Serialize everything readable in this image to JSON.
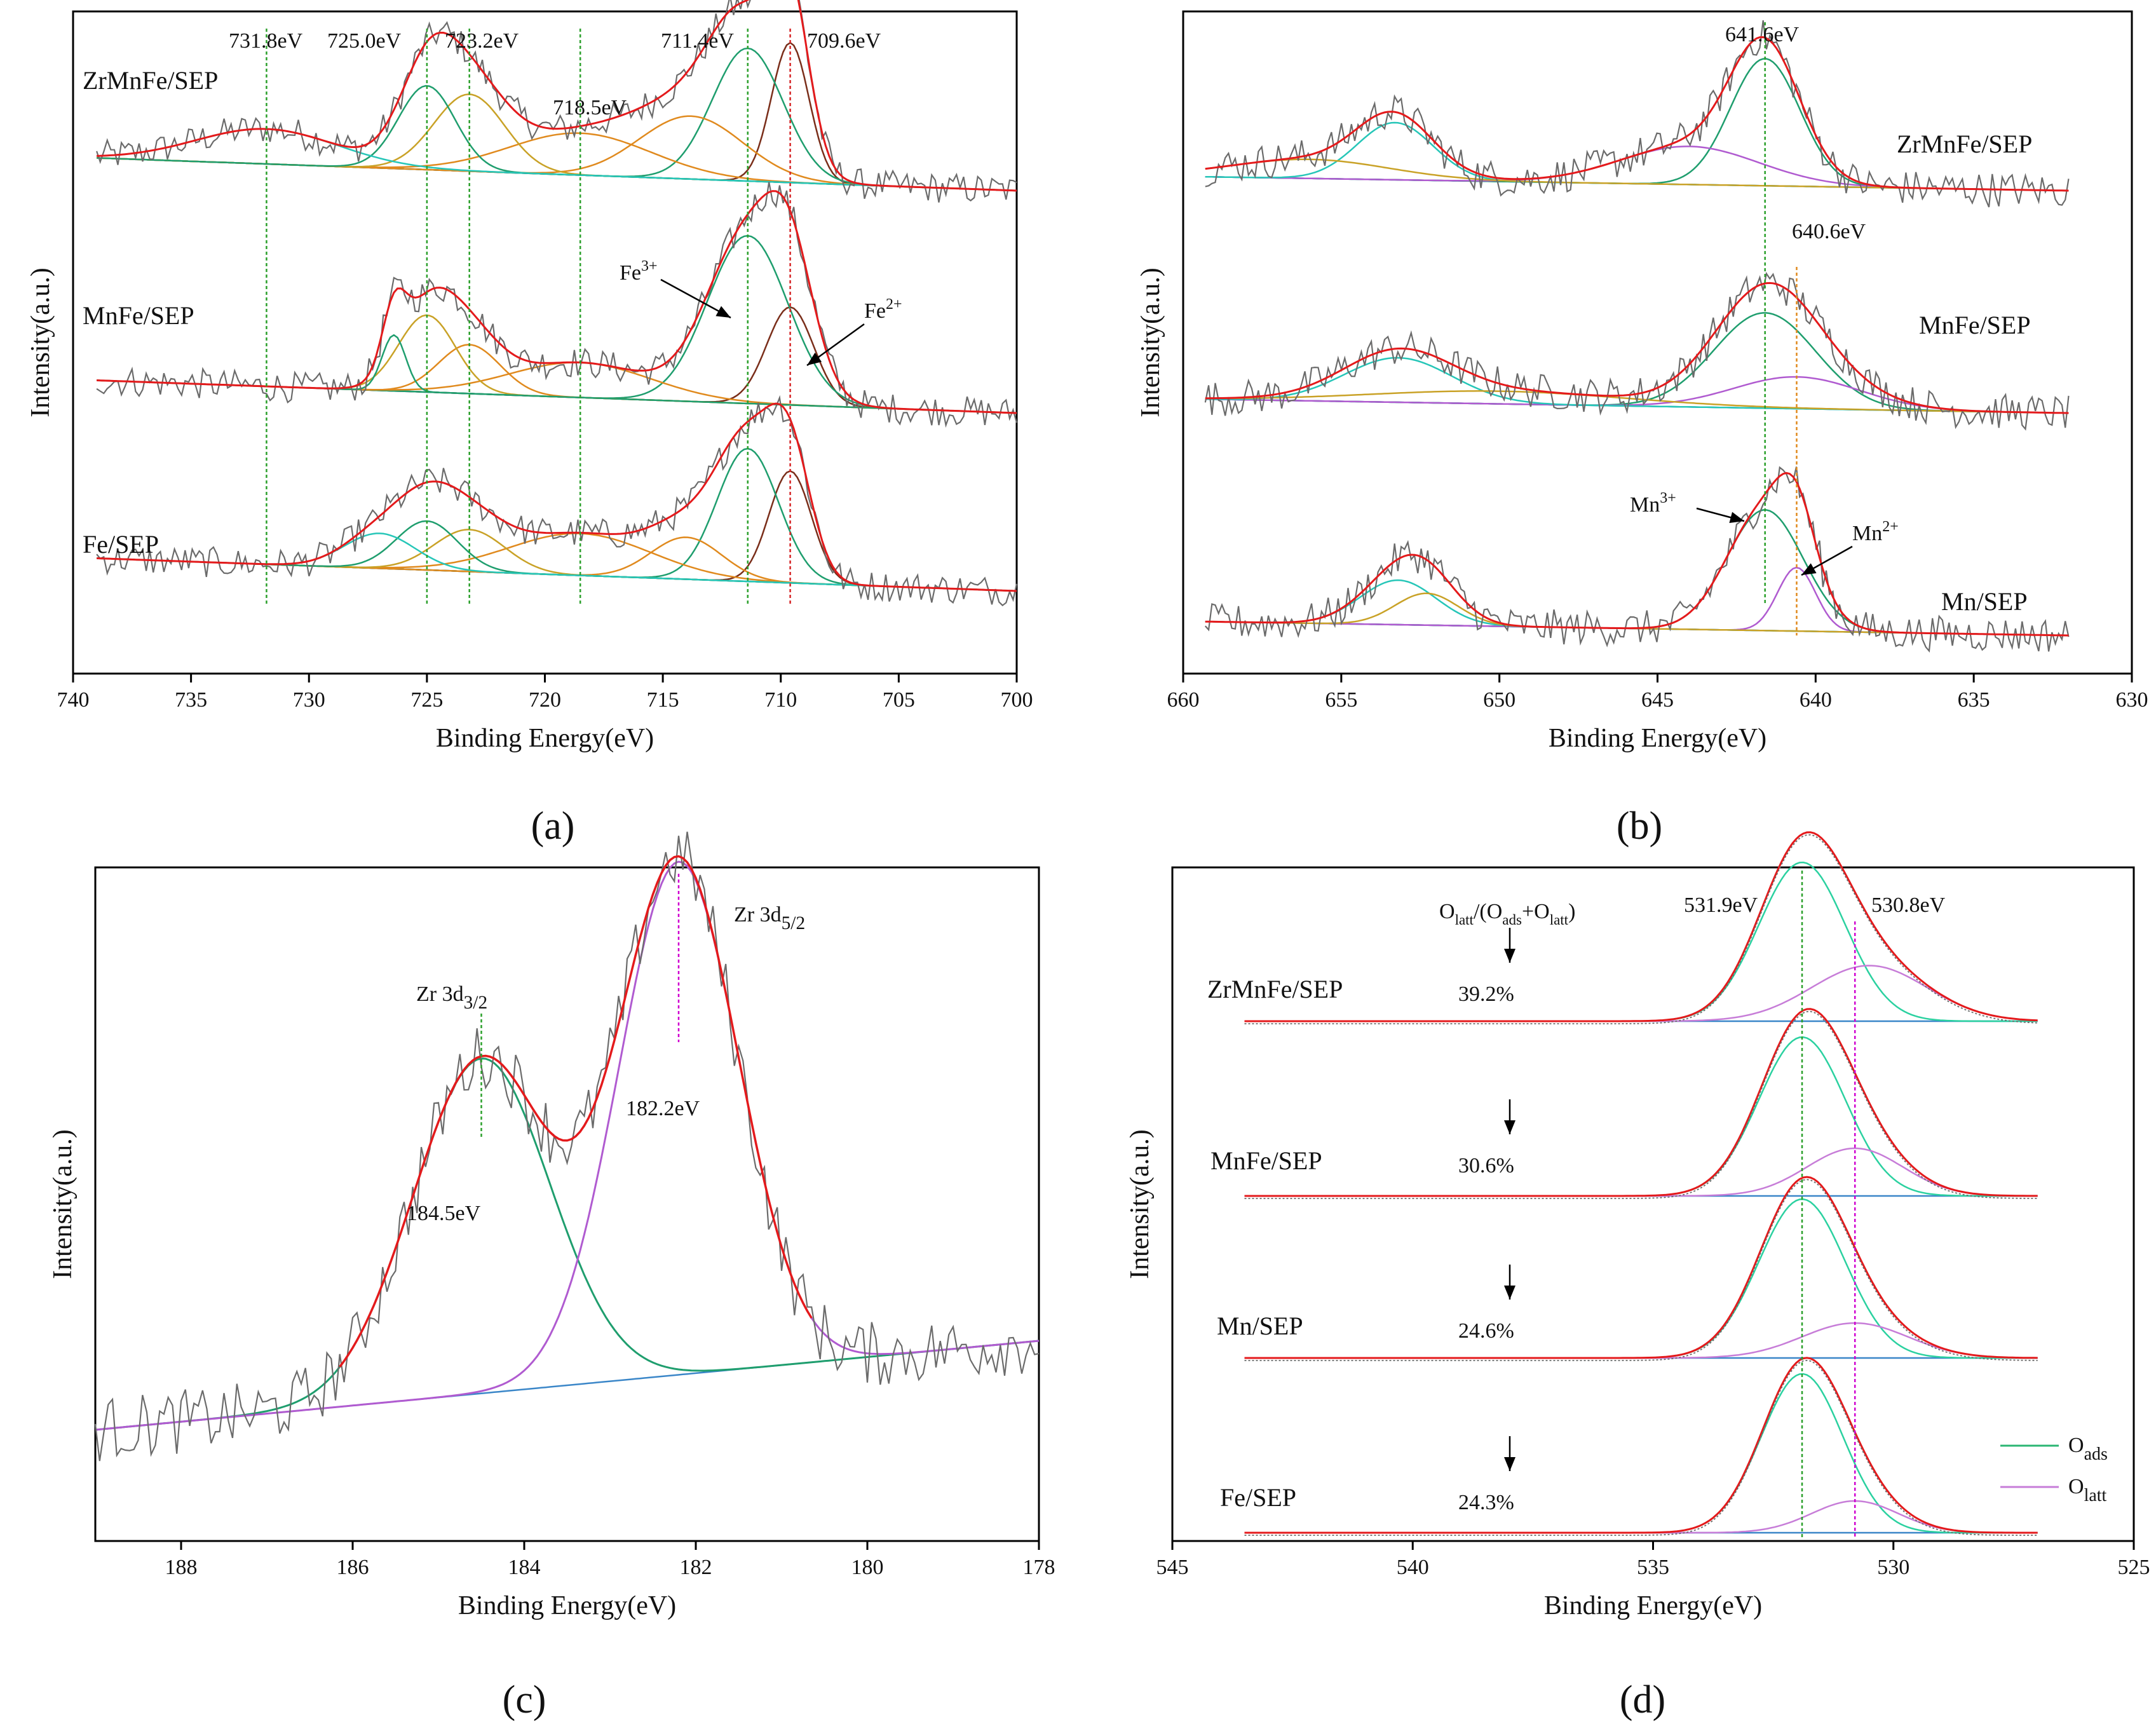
{
  "chart_data": [
    {
      "type": "line",
      "panel": "a",
      "xlabel": "Binding Energy(eV)",
      "ylabel": "Intensity(a.u.)",
      "xlim": [
        740,
        700
      ],
      "xticks": [
        740,
        735,
        730,
        725,
        720,
        715,
        710,
        705,
        700
      ],
      "peak_labels": [
        "731.8eV",
        "725.0eV",
        "723.2eV",
        "718.5eV",
        "711.4eV",
        "709.6eV"
      ],
      "reference_lines_eV": [
        731.8,
        725.0,
        723.2,
        718.5,
        711.4,
        709.6
      ],
      "annotations": [
        {
          "base": "Fe",
          "sup": "3+",
          "points_to_eV": 711.4
        },
        {
          "base": "Fe",
          "sup": "2+",
          "points_to_eV": 709.6
        }
      ],
      "samples": [
        {
          "name": "ZrMnFe/SEP",
          "components": [
            {
              "center": 709.6,
              "amp": 1.0,
              "width": 0.8
            },
            {
              "center": 711.4,
              "amp": 0.95,
              "width": 1.5
            },
            {
              "center": 713.8,
              "amp": 0.45,
              "width": 2.2
            },
            {
              "center": 718.5,
              "amp": 0.3,
              "width": 3.0
            },
            {
              "center": 723.2,
              "amp": 0.55,
              "width": 1.5
            },
            {
              "center": 725.0,
              "amp": 0.6,
              "width": 1.2
            },
            {
              "center": 731.8,
              "amp": 0.25,
              "width": 3.0
            }
          ]
        },
        {
          "name": "MnFe/SEP",
          "components": [
            {
              "center": 709.6,
              "amp": 0.7,
              "width": 1.0
            },
            {
              "center": 711.4,
              "amp": 1.2,
              "width": 1.7
            },
            {
              "center": 718.5,
              "amp": 0.25,
              "width": 3.0
            },
            {
              "center": 723.2,
              "amp": 0.35,
              "width": 1.3
            },
            {
              "center": 725.0,
              "amp": 0.55,
              "width": 1.2
            },
            {
              "center": 726.4,
              "amp": 0.4,
              "width": 0.5
            }
          ]
        },
        {
          "name": "Fe/SEP",
          "components": [
            {
              "center": 709.6,
              "amp": 0.8,
              "width": 0.9
            },
            {
              "center": 711.4,
              "amp": 0.95,
              "width": 1.3
            },
            {
              "center": 714.0,
              "amp": 0.3,
              "width": 1.5
            },
            {
              "center": 718.5,
              "amp": 0.3,
              "width": 3.0
            },
            {
              "center": 723.2,
              "amp": 0.3,
              "width": 1.5
            },
            {
              "center": 725.0,
              "amp": 0.35,
              "width": 1.3
            },
            {
              "center": 727.0,
              "amp": 0.25,
              "width": 1.5
            }
          ]
        }
      ]
    },
    {
      "type": "line",
      "panel": "b",
      "xlabel": "Binding Energy(eV)",
      "ylabel": "Intensity(a.u.)",
      "xlim": [
        660,
        630
      ],
      "xticks": [
        660,
        655,
        650,
        645,
        640,
        635,
        630
      ],
      "peak_labels": [
        "641.6eV",
        "640.6eV"
      ],
      "reference_lines_eV": [
        641.6,
        640.6
      ],
      "annotations": [
        {
          "base": "Mn",
          "sup": "3+",
          "points_to_eV": 641.6
        },
        {
          "base": "Mn",
          "sup": "2+",
          "points_to_eV": 640.6
        }
      ],
      "samples": [
        {
          "name": "ZrMnFe/SEP",
          "components": [
            {
              "center": 641.6,
              "amp": 1.0,
              "width": 1.1
            },
            {
              "center": 644.0,
              "amp": 0.3,
              "width": 2.2
            },
            {
              "center": 653.3,
              "amp": 0.45,
              "width": 1.2
            },
            {
              "center": 656.0,
              "amp": 0.15,
              "width": 2.5
            }
          ]
        },
        {
          "name": "MnFe/SEP",
          "components": [
            {
              "center": 641.6,
              "amp": 0.75,
              "width": 1.6
            },
            {
              "center": 640.6,
              "amp": 0.25,
              "width": 2.0
            },
            {
              "center": 653.2,
              "amp": 0.35,
              "width": 1.7
            },
            {
              "center": 650.0,
              "amp": 0.1,
              "width": 4.0
            }
          ]
        },
        {
          "name": "Mn/SEP",
          "components": [
            {
              "center": 641.6,
              "amp": 0.95,
              "width": 1.2
            },
            {
              "center": 640.6,
              "amp": 0.5,
              "width": 0.6
            },
            {
              "center": 653.2,
              "amp": 0.35,
              "width": 1.2
            },
            {
              "center": 652.3,
              "amp": 0.25,
              "width": 1.0
            }
          ]
        }
      ]
    },
    {
      "type": "line",
      "panel": "c",
      "xlabel": "Binding Energy(eV)",
      "ylabel": "Intensity(a.u.)",
      "xlim": [
        189,
        178
      ],
      "xticks": [
        188,
        186,
        184,
        182,
        180,
        178
      ],
      "peak_labels": [
        "184.5eV",
        "182.2eV"
      ],
      "reference_lines_eV": [
        184.5,
        182.2
      ],
      "annotations": [
        {
          "base": "Zr 3d",
          "sub": "3/2",
          "points_to_eV": 184.5
        },
        {
          "base": "Zr 3d",
          "sub": "5/2",
          "points_to_eV": 182.2
        }
      ],
      "components": [
        {
          "center": 184.5,
          "amp": 0.62,
          "width": 0.8
        },
        {
          "center": 182.2,
          "amp": 0.95,
          "width": 0.7
        }
      ]
    },
    {
      "type": "line",
      "panel": "d",
      "xlabel": "Binding Energy(eV)",
      "ylabel": "Intensity(a.u.)",
      "xlim": [
        545,
        525
      ],
      "xticks": [
        545,
        540,
        535,
        530,
        525
      ],
      "peak_labels": [
        "531.9eV",
        "530.8eV"
      ],
      "reference_lines_eV": [
        531.9,
        530.8
      ],
      "ratio_header": {
        "prefix": "O",
        "sub1": "latt",
        "mid": "/(O",
        "sub2": "ads",
        "mid2": "+O",
        "sub3": "latt",
        "suffix": ")"
      },
      "legend": [
        {
          "base": "O",
          "sub": "ads",
          "color": "#2bb673"
        },
        {
          "base": "O",
          "sub": "latt",
          "color": "#c77dd8"
        }
      ],
      "samples": [
        {
          "name": "ZrMnFe/SEP",
          "ratio": "39.2%",
          "oads": {
            "center": 531.9,
            "amp": 1.0,
            "width": 0.9
          },
          "olatt": {
            "center": 530.5,
            "amp": 0.35,
            "width": 1.2
          }
        },
        {
          "name": "MnFe/SEP",
          "ratio": "30.6%",
          "oads": {
            "center": 531.9,
            "amp": 1.0,
            "width": 0.9
          },
          "olatt": {
            "center": 530.8,
            "amp": 0.3,
            "width": 1.0
          }
        },
        {
          "name": "Mn/SEP",
          "ratio": "24.6%",
          "oads": {
            "center": 531.9,
            "amp": 1.0,
            "width": 0.9
          },
          "olatt": {
            "center": 530.8,
            "amp": 0.22,
            "width": 1.1
          }
        },
        {
          "name": "Fe/SEP",
          "ratio": "24.3%",
          "oads": {
            "center": 531.9,
            "amp": 1.0,
            "width": 0.85
          },
          "olatt": {
            "center": 530.8,
            "amp": 0.2,
            "width": 0.9
          }
        }
      ]
    }
  ],
  "panel_letters": [
    "(a)",
    "(b)",
    "(c)",
    "(d)"
  ],
  "colors": {
    "raw": "#6b6b6b",
    "fit": "#e41a1c",
    "background": "#3a86c8",
    "green": "#1f9e6e",
    "teal": "#26c6b8",
    "orange": "#e08a1e",
    "violet": "#b05bd0",
    "brown": "#7a2e1a",
    "gold": "#c9a227",
    "line_green": "#2ca02c",
    "line_red": "#d62728",
    "line_magenta": "#d000d0"
  }
}
